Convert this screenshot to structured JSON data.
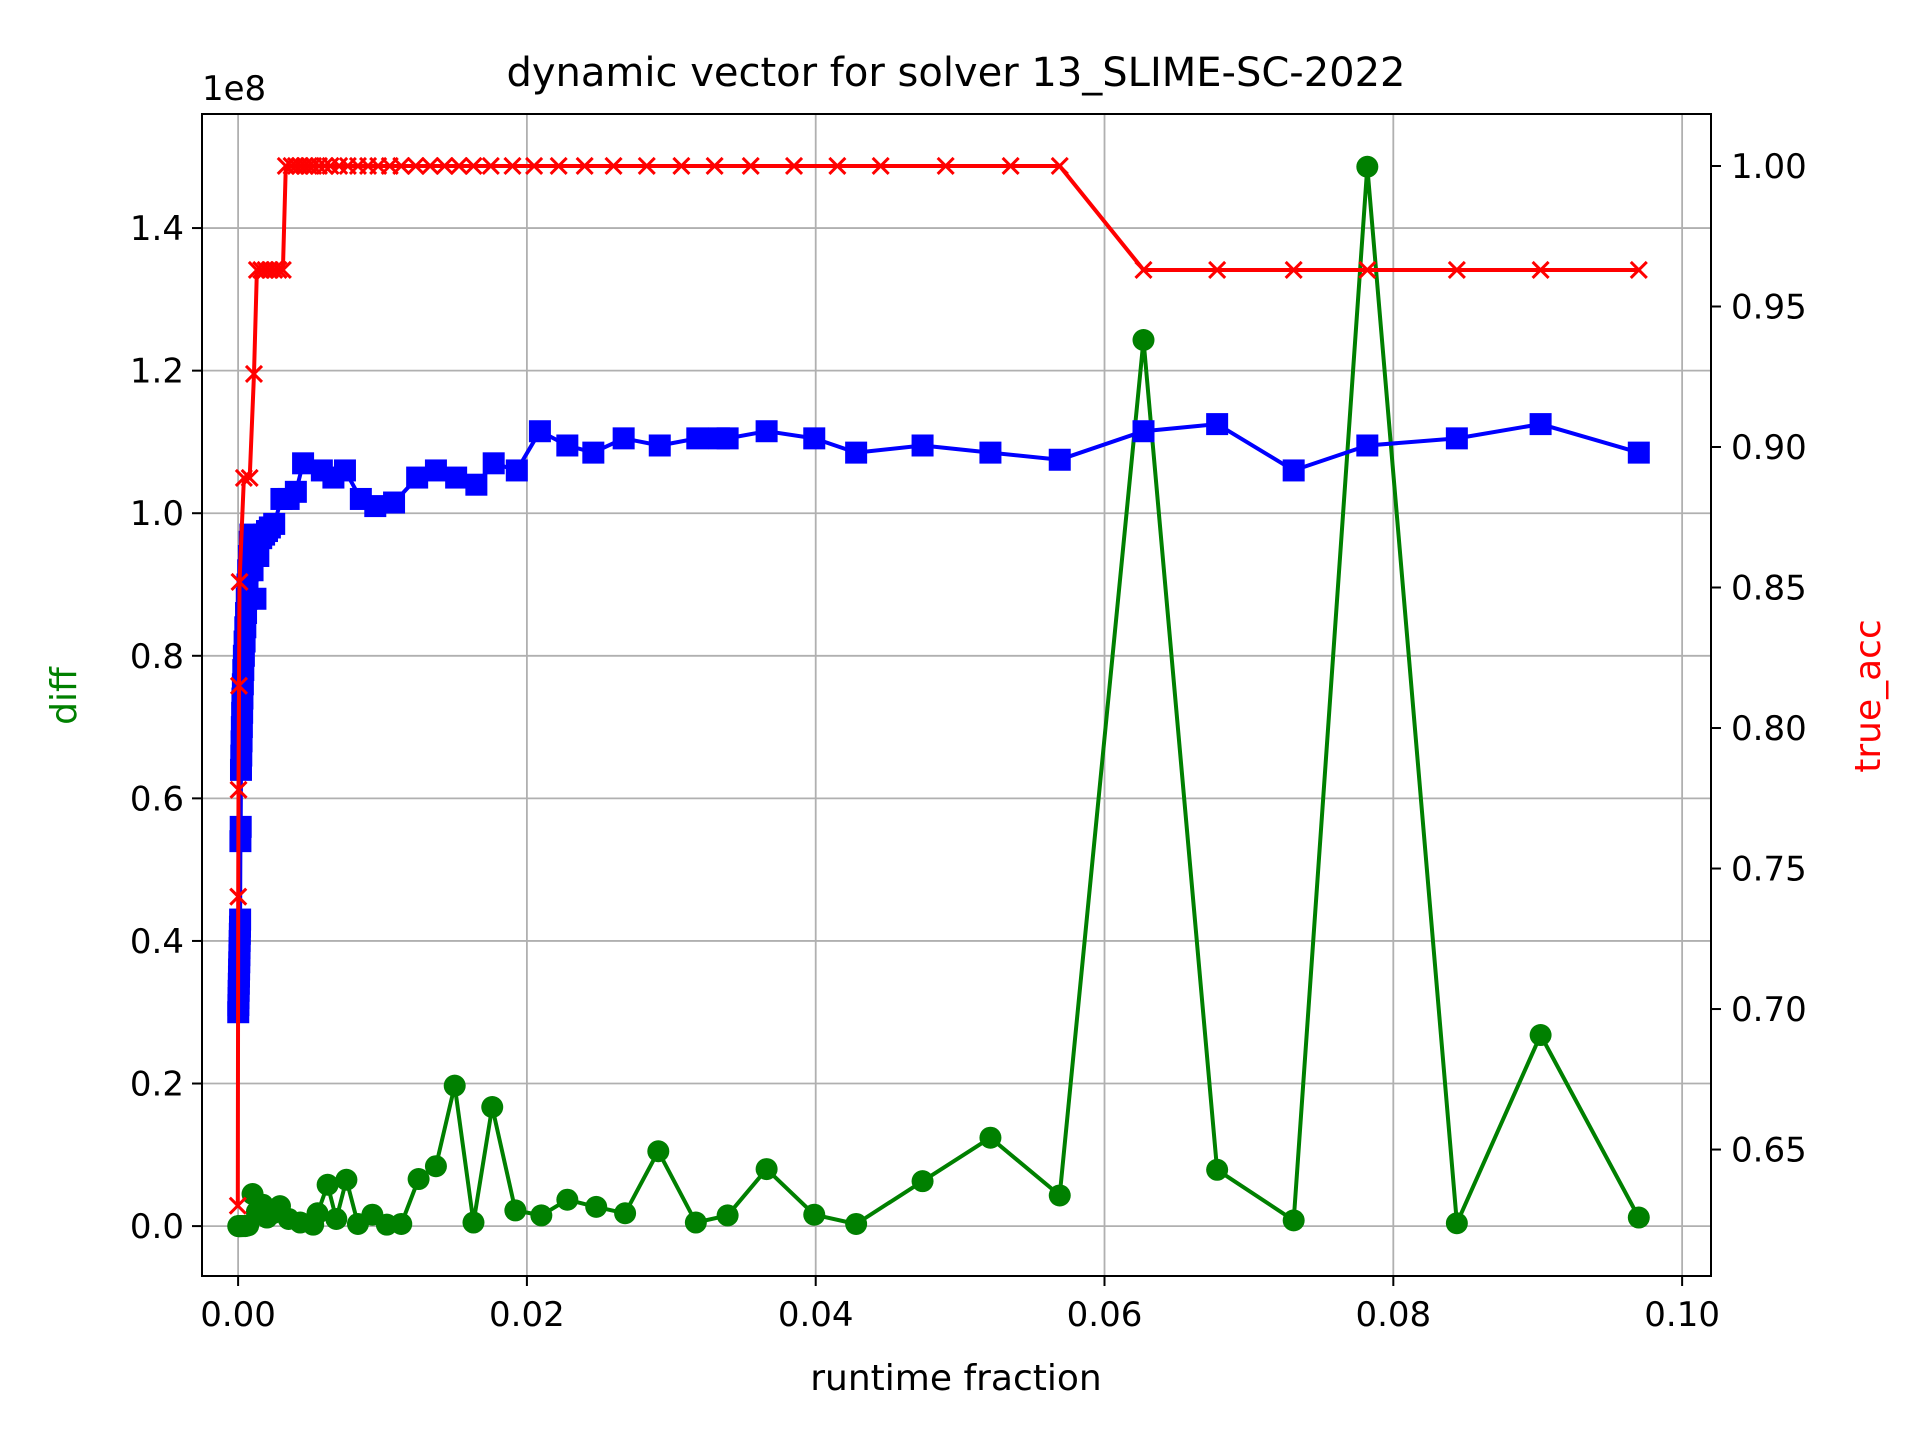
{
  "chart_data": {
    "type": "line",
    "title": "dynamic vector for solver 13_SLIME-SC-2022",
    "xlabel": "runtime fraction",
    "ylabel_left": "diff",
    "ylabel_right": "true_acc",
    "left_axis_offset_text": "1e8",
    "xlim": [
      -0.0025,
      0.102
    ],
    "ylim_left": [
      -0.07,
      1.56
    ],
    "ylim_right": [
      0.605,
      1.0185
    ],
    "x_ticks": [
      0.0,
      0.02,
      0.04,
      0.06,
      0.08,
      0.1
    ],
    "x_tick_labels": [
      "0.00",
      "0.02",
      "0.04",
      "0.06",
      "0.08",
      "0.10"
    ],
    "y_left_ticks": [
      0.0,
      0.2,
      0.4,
      0.6,
      0.8,
      1.0,
      1.2,
      1.4
    ],
    "y_left_tick_labels": [
      "0.0",
      "0.2",
      "0.4",
      "0.6",
      "0.8",
      "1.0",
      "1.2",
      "1.4"
    ],
    "y_right_ticks": [
      0.65,
      0.7,
      0.75,
      0.8,
      0.85,
      0.9,
      0.95,
      1.0
    ],
    "y_right_tick_labels": [
      "0.65",
      "0.70",
      "0.75",
      "0.80",
      "0.85",
      "0.90",
      "0.95",
      "1.00"
    ],
    "grid": true,
    "colors": {
      "diff": "#008000",
      "blue": "#0000ff",
      "true_acc": "#ff0000",
      "axis": "#000000",
      "grid": "#b0b0b0"
    },
    "series": [
      {
        "axis": "left",
        "color": "#008000",
        "marker": "circle",
        "points": [
          [
            1e-05,
            0.0
          ],
          [
            3e-05,
            0.0
          ],
          [
            5e-05,
            0.0
          ],
          [
            8e-05,
            0.0
          ],
          [
            0.0001,
            0.0
          ],
          [
            0.00013,
            0.0
          ],
          [
            0.00016,
            0.0
          ],
          [
            0.0002,
            0.0
          ],
          [
            0.00025,
            0.0
          ],
          [
            0.0003,
            0.0
          ],
          [
            0.0004,
            0.0
          ],
          [
            0.0005,
            0.0
          ],
          [
            0.0007,
            0.001
          ],
          [
            0.001,
            0.045
          ],
          [
            0.0013,
            0.02
          ],
          [
            0.0017,
            0.03
          ],
          [
            0.002,
            0.012
          ],
          [
            0.0024,
            0.018
          ],
          [
            0.0029,
            0.028
          ],
          [
            0.0035,
            0.01
          ],
          [
            0.0043,
            0.005
          ],
          [
            0.0052,
            0.002
          ],
          [
            0.0055,
            0.018
          ],
          [
            0.0062,
            0.058
          ],
          [
            0.0068,
            0.01
          ],
          [
            0.0075,
            0.065
          ],
          [
            0.0083,
            0.003
          ],
          [
            0.0093,
            0.016
          ],
          [
            0.0103,
            0.002
          ],
          [
            0.0113,
            0.003
          ],
          [
            0.0125,
            0.066
          ],
          [
            0.0137,
            0.084
          ],
          [
            0.015,
            0.197
          ],
          [
            0.0163,
            0.005
          ],
          [
            0.0176,
            0.167
          ],
          [
            0.0192,
            0.022
          ],
          [
            0.021,
            0.015
          ],
          [
            0.0228,
            0.037
          ],
          [
            0.0248,
            0.027
          ],
          [
            0.0268,
            0.018
          ],
          [
            0.0291,
            0.105
          ],
          [
            0.0317,
            0.005
          ],
          [
            0.0339,
            0.015
          ],
          [
            0.0366,
            0.08
          ],
          [
            0.0399,
            0.016
          ],
          [
            0.0428,
            0.003
          ],
          [
            0.0474,
            0.063
          ],
          [
            0.0521,
            0.124
          ],
          [
            0.0569,
            0.043
          ],
          [
            0.0627,
            1.243
          ],
          [
            0.0678,
            0.079
          ],
          [
            0.0731,
            0.008
          ],
          [
            0.0782,
            1.486
          ],
          [
            0.0844,
            0.004
          ],
          [
            0.0902,
            0.268
          ],
          [
            0.097,
            0.012
          ]
        ]
      },
      {
        "axis": "left",
        "color": "#0000ff",
        "marker": "square",
        "points": [
          [
            1e-05,
            0.3
          ],
          [
            2e-05,
            0.31
          ],
          [
            3e-05,
            0.32
          ],
          [
            4e-05,
            0.33
          ],
          [
            5e-05,
            0.34
          ],
          [
            6e-05,
            0.35
          ],
          [
            7e-05,
            0.36
          ],
          [
            8e-05,
            0.37
          ],
          [
            9e-05,
            0.38
          ],
          [
            0.0001,
            0.39
          ],
          [
            0.00011,
            0.4
          ],
          [
            0.00012,
            0.41
          ],
          [
            0.00013,
            0.42
          ],
          [
            0.00014,
            0.43
          ],
          [
            0.00016,
            0.54
          ],
          [
            0.00018,
            0.56
          ],
          [
            0.0002,
            0.64
          ],
          [
            0.00022,
            0.66
          ],
          [
            0.00024,
            0.68
          ],
          [
            0.00026,
            0.7
          ],
          [
            0.00028,
            0.72
          ],
          [
            0.0003,
            0.74
          ],
          [
            0.00033,
            0.76
          ],
          [
            0.00036,
            0.78
          ],
          [
            0.0004,
            0.8
          ],
          [
            0.00045,
            0.82
          ],
          [
            0.0005,
            0.84
          ],
          [
            0.00055,
            0.86
          ],
          [
            0.0006,
            0.88
          ],
          [
            0.00065,
            0.9
          ],
          [
            0.0007,
            0.92
          ],
          [
            0.00075,
            0.94
          ],
          [
            0.0008,
            0.96
          ],
          [
            0.00085,
            0.97
          ],
          [
            0.001,
            0.92
          ],
          [
            0.0012,
            0.88
          ],
          [
            0.0014,
            0.94
          ],
          [
            0.0016,
            0.965
          ],
          [
            0.0018,
            0.97
          ],
          [
            0.002,
            0.975
          ],
          [
            0.0022,
            0.98
          ],
          [
            0.0025,
            0.985
          ],
          [
            0.003,
            1.02
          ],
          [
            0.0035,
            1.02
          ],
          [
            0.004,
            1.03
          ],
          [
            0.0045,
            1.07
          ],
          [
            0.0058,
            1.06
          ],
          [
            0.0066,
            1.05
          ],
          [
            0.0074,
            1.06
          ],
          [
            0.0085,
            1.02
          ],
          [
            0.0095,
            1.01
          ],
          [
            0.0108,
            1.015
          ],
          [
            0.0124,
            1.05
          ],
          [
            0.0137,
            1.06
          ],
          [
            0.0151,
            1.05
          ],
          [
            0.0165,
            1.04
          ],
          [
            0.0177,
            1.07
          ],
          [
            0.0193,
            1.06
          ],
          [
            0.0209,
            1.115
          ],
          [
            0.0228,
            1.095
          ],
          [
            0.0246,
            1.085
          ],
          [
            0.0267,
            1.105
          ],
          [
            0.0292,
            1.095
          ],
          [
            0.0318,
            1.105
          ],
          [
            0.0333,
            1.105
          ],
          [
            0.0339,
            1.105
          ],
          [
            0.0366,
            1.115
          ],
          [
            0.0399,
            1.105
          ],
          [
            0.0428,
            1.085
          ],
          [
            0.0474,
            1.095
          ],
          [
            0.0521,
            1.085
          ],
          [
            0.0569,
            1.075
          ],
          [
            0.0627,
            1.115
          ],
          [
            0.0678,
            1.125
          ],
          [
            0.0731,
            1.06
          ],
          [
            0.0782,
            1.095
          ],
          [
            0.0844,
            1.105
          ],
          [
            0.0902,
            1.125
          ],
          [
            0.097,
            1.085
          ]
        ]
      },
      {
        "name": "true_acc",
        "axis": "right",
        "color": "#ff0000",
        "marker": "x",
        "points": [
          [
            -2e-05,
            0.63
          ],
          [
            1e-05,
            0.74
          ],
          [
            3e-05,
            0.778
          ],
          [
            6e-05,
            0.815
          ],
          [
            0.0001,
            0.852
          ],
          [
            0.0004,
            0.889
          ],
          [
            0.0008,
            0.889
          ],
          [
            0.0011,
            0.926
          ],
          [
            0.0013,
            0.963
          ],
          [
            0.0016,
            0.963
          ],
          [
            0.0019,
            0.963
          ],
          [
            0.0022,
            0.963
          ],
          [
            0.0025,
            0.963
          ],
          [
            0.0028,
            0.963
          ],
          [
            0.0031,
            0.963
          ],
          [
            0.0033,
            1.0
          ],
          [
            0.0037,
            1.0
          ],
          [
            0.004,
            1.0
          ],
          [
            0.0043,
            1.0
          ],
          [
            0.0046,
            1.0
          ],
          [
            0.0049,
            1.0
          ],
          [
            0.0052,
            1.0
          ],
          [
            0.0056,
            1.0
          ],
          [
            0.006,
            1.0
          ],
          [
            0.0064,
            1.0
          ],
          [
            0.007,
            1.0
          ],
          [
            0.0076,
            1.0
          ],
          [
            0.0083,
            1.0
          ],
          [
            0.009,
            1.0
          ],
          [
            0.0097,
            1.0
          ],
          [
            0.0105,
            1.0
          ],
          [
            0.0113,
            1.0
          ],
          [
            0.0123,
            1.0
          ],
          [
            0.0133,
            1.0
          ],
          [
            0.0143,
            1.0
          ],
          [
            0.0153,
            1.0
          ],
          [
            0.0163,
            1.0
          ],
          [
            0.0175,
            1.0
          ],
          [
            0.019,
            1.0
          ],
          [
            0.0205,
            1.0
          ],
          [
            0.0222,
            1.0
          ],
          [
            0.024,
            1.0
          ],
          [
            0.026,
            1.0
          ],
          [
            0.0283,
            1.0
          ],
          [
            0.0307,
            1.0
          ],
          [
            0.033,
            1.0
          ],
          [
            0.0355,
            1.0
          ],
          [
            0.0385,
            1.0
          ],
          [
            0.0415,
            1.0
          ],
          [
            0.0445,
            1.0
          ],
          [
            0.049,
            1.0
          ],
          [
            0.0535,
            1.0
          ],
          [
            0.0569,
            1.0
          ],
          [
            0.0627,
            0.963
          ],
          [
            0.0678,
            0.963
          ],
          [
            0.0731,
            0.963
          ],
          [
            0.0782,
            0.963
          ],
          [
            0.0844,
            0.963
          ],
          [
            0.0902,
            0.963
          ],
          [
            0.097,
            0.963
          ]
        ]
      }
    ]
  }
}
